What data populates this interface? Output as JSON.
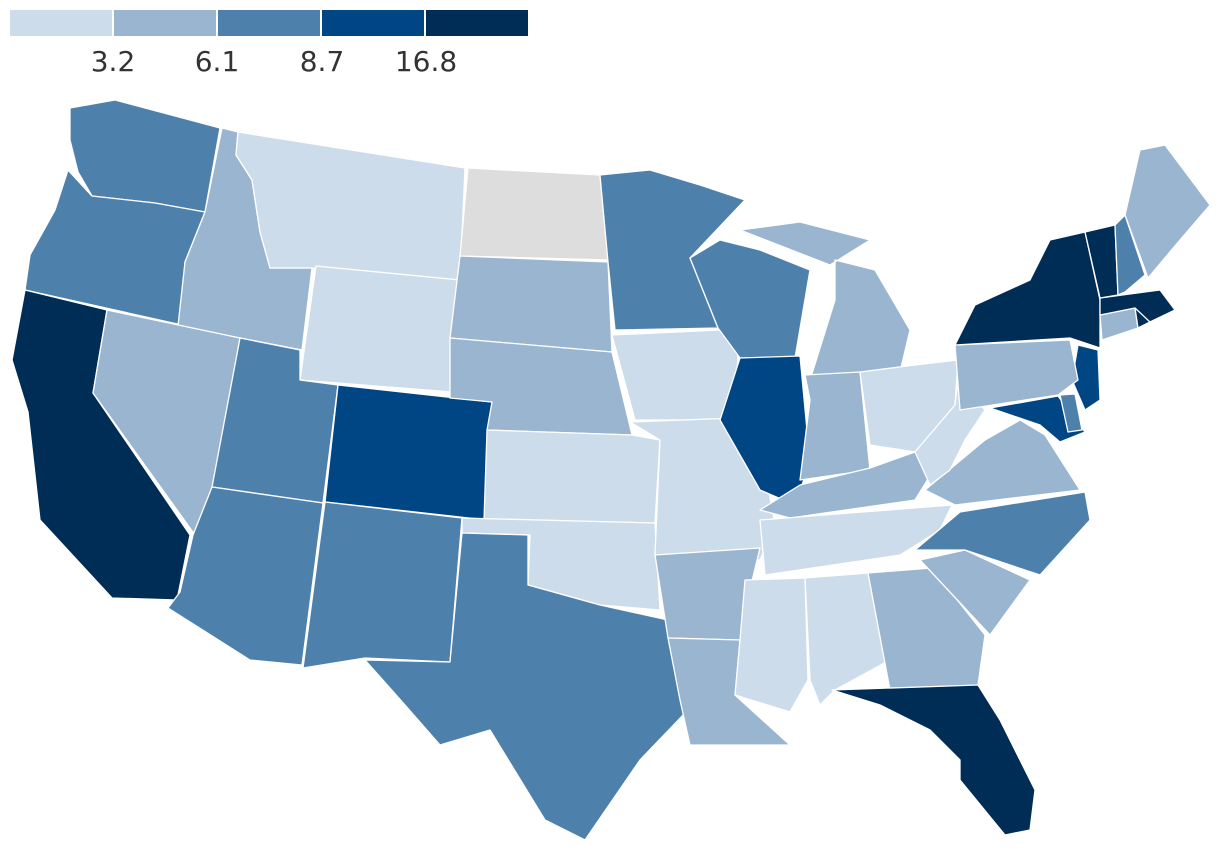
{
  "legend": {
    "colors": [
      "#cddcea",
      "#99b5cf",
      "#4e80ac",
      "#004684",
      "#002d56"
    ],
    "thresholds": [
      "3.2",
      "6.1",
      "8.7",
      "16.8"
    ]
  },
  "no_data_color": "#dddddd",
  "states": [
    {
      "id": "WA",
      "name": "Washington",
      "bin": 2
    },
    {
      "id": "OR",
      "name": "Oregon",
      "bin": 2
    },
    {
      "id": "CA",
      "name": "California",
      "bin": 4
    },
    {
      "id": "ID",
      "name": "Idaho",
      "bin": 1
    },
    {
      "id": "NV",
      "name": "Nevada",
      "bin": 1
    },
    {
      "id": "MT",
      "name": "Montana",
      "bin": 0
    },
    {
      "id": "WY",
      "name": "Wyoming",
      "bin": 0
    },
    {
      "id": "UT",
      "name": "Utah",
      "bin": 2
    },
    {
      "id": "AZ",
      "name": "Arizona",
      "bin": 2
    },
    {
      "id": "CO",
      "name": "Colorado",
      "bin": 3
    },
    {
      "id": "NM",
      "name": "New Mexico",
      "bin": 2
    },
    {
      "id": "ND",
      "name": "North Dakota",
      "bin": null
    },
    {
      "id": "SD",
      "name": "South Dakota",
      "bin": 1
    },
    {
      "id": "NE",
      "name": "Nebraska",
      "bin": 1
    },
    {
      "id": "KS",
      "name": "Kansas",
      "bin": 0
    },
    {
      "id": "OK",
      "name": "Oklahoma",
      "bin": 0
    },
    {
      "id": "TX",
      "name": "Texas",
      "bin": 2
    },
    {
      "id": "MN",
      "name": "Minnesota",
      "bin": 2
    },
    {
      "id": "IA",
      "name": "Iowa",
      "bin": 0
    },
    {
      "id": "MO",
      "name": "Missouri",
      "bin": 0
    },
    {
      "id": "AR",
      "name": "Arkansas",
      "bin": 1
    },
    {
      "id": "LA",
      "name": "Louisiana",
      "bin": 1
    },
    {
      "id": "WI",
      "name": "Wisconsin",
      "bin": 2
    },
    {
      "id": "IL",
      "name": "Illinois",
      "bin": 3
    },
    {
      "id": "MI",
      "name": "Michigan",
      "bin": 1
    },
    {
      "id": "IN",
      "name": "Indiana",
      "bin": 1
    },
    {
      "id": "OH",
      "name": "Ohio",
      "bin": 0
    },
    {
      "id": "KY",
      "name": "Kentucky",
      "bin": 1
    },
    {
      "id": "TN",
      "name": "Tennessee",
      "bin": 0
    },
    {
      "id": "MS",
      "name": "Mississippi",
      "bin": 0
    },
    {
      "id": "AL",
      "name": "Alabama",
      "bin": 0
    },
    {
      "id": "GA",
      "name": "Georgia",
      "bin": 1
    },
    {
      "id": "FL",
      "name": "Florida",
      "bin": 4
    },
    {
      "id": "SC",
      "name": "South Carolina",
      "bin": 1
    },
    {
      "id": "NC",
      "name": "North Carolina",
      "bin": 2
    },
    {
      "id": "VA",
      "name": "Virginia",
      "bin": 1
    },
    {
      "id": "WV",
      "name": "West Virginia",
      "bin": 0
    },
    {
      "id": "MD",
      "name": "Maryland",
      "bin": 3
    },
    {
      "id": "DE",
      "name": "Delaware",
      "bin": 2
    },
    {
      "id": "NJ",
      "name": "New Jersey",
      "bin": 3
    },
    {
      "id": "PA",
      "name": "Pennsylvania",
      "bin": 1
    },
    {
      "id": "NY",
      "name": "New York",
      "bin": 4
    },
    {
      "id": "CT",
      "name": "Connecticut",
      "bin": 1
    },
    {
      "id": "RI",
      "name": "Rhode Island",
      "bin": 4
    },
    {
      "id": "MA",
      "name": "Massachusetts",
      "bin": 4
    },
    {
      "id": "VT",
      "name": "Vermont",
      "bin": 4
    },
    {
      "id": "NH",
      "name": "New Hampshire",
      "bin": 2
    },
    {
      "id": "ME",
      "name": "Maine",
      "bin": 1
    }
  ]
}
